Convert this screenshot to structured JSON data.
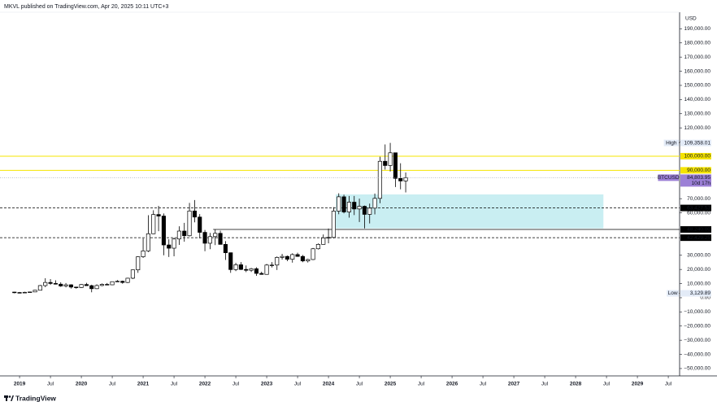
{
  "chart_data": {
    "type": "candlestick",
    "header": "MKVL published on TradingView.com, Apr 20, 2025 10:11 UTC+3",
    "currency": "USD",
    "footer": "TradingView",
    "up_color": "#ffffff",
    "down_color": "#000000",
    "x": [
      -1,
      0,
      1,
      2,
      3,
      4,
      5,
      6,
      7,
      8,
      9,
      10,
      11,
      12,
      13,
      14,
      15,
      16,
      17,
      18,
      19,
      20,
      21,
      22,
      23,
      24,
      25,
      26,
      27,
      28,
      29,
      30,
      31,
      32,
      33,
      34,
      35,
      36,
      37,
      38,
      39,
      40,
      41,
      42,
      43,
      44,
      45,
      46,
      47,
      48,
      49,
      50,
      51,
      52,
      53,
      54,
      55,
      56,
      57,
      58,
      59,
      60,
      61,
      62,
      63,
      64,
      65,
      66,
      67,
      68,
      69,
      70,
      71,
      72,
      73,
      74,
      75
    ],
    "open": [
      4000,
      3700,
      3450,
      3850,
      4100,
      5300,
      8600,
      10800,
      10100,
      9600,
      8300,
      9150,
      7550,
      7200,
      9350,
      8550,
      6400,
      8650,
      9450,
      9150,
      11350,
      11650,
      10800,
      13800,
      19700,
      28950,
      33100,
      45200,
      58800,
      57700,
      37300,
      35000,
      41500,
      47100,
      43800,
      61300,
      57000,
      46200,
      38500,
      43200,
      45500,
      37700,
      31800,
      19900,
      23300,
      20000,
      19400,
      20500,
      17200,
      16500,
      23100,
      23100,
      28500,
      29200,
      27200,
      30500,
      29200,
      26000,
      27000,
      34600,
      37700,
      42300,
      42600,
      61200,
      71300,
      60600,
      67500,
      62700,
      64600,
      58900,
      63300,
      70200,
      96400,
      93400,
      102400,
      84300,
      82500
    ],
    "high": [
      4200,
      4100,
      4200,
      4100,
      5600,
      9000,
      13800,
      13200,
      12300,
      10900,
      10400,
      9500,
      7750,
      9600,
      10500,
      9200,
      9450,
      10100,
      10400,
      11450,
      12500,
      12100,
      14100,
      19900,
      29300,
      41950,
      58300,
      61800,
      64900,
      59500,
      41300,
      42400,
      50500,
      52900,
      67000,
      69000,
      59100,
      47900,
      45800,
      48200,
      47400,
      40000,
      31900,
      24700,
      25200,
      22800,
      21100,
      21500,
      18400,
      23900,
      25200,
      29200,
      31000,
      29800,
      31400,
      31800,
      30200,
      27500,
      35200,
      38400,
      44700,
      48900,
      64000,
      73800,
      72800,
      71900,
      71900,
      70000,
      65100,
      66500,
      73600,
      99600,
      108300,
      109358.01,
      102500,
      95000,
      88500
    ],
    "low": [
      3129.89,
      3400,
      3400,
      3700,
      4050,
      5300,
      7500,
      9100,
      9400,
      7700,
      7300,
      6500,
      6400,
      6850,
      8450,
      3850,
      6150,
      8150,
      8900,
      8950,
      11100,
      9900,
      10400,
      13200,
      17600,
      28100,
      32300,
      45000,
      47000,
      30000,
      28800,
      29300,
      37300,
      39600,
      43300,
      53300,
      42000,
      32900,
      34300,
      37200,
      37600,
      26700,
      17600,
      18800,
      19600,
      18100,
      18200,
      15500,
      16300,
      16500,
      21400,
      19600,
      26900,
      25800,
      24800,
      28900,
      25100,
      24900,
      26600,
      34100,
      37600,
      38500,
      41900,
      59000,
      59600,
      56600,
      58400,
      53500,
      49000,
      52500,
      58900,
      66800,
      90500,
      89200,
      78200,
      76600,
      74400
    ],
    "close": [
      3700,
      3450,
      3850,
      4100,
      5300,
      8600,
      10800,
      10100,
      9600,
      8300,
      9150,
      7550,
      7200,
      9350,
      8550,
      6400,
      8650,
      9450,
      9150,
      11350,
      11650,
      10800,
      13800,
      19700,
      28950,
      33100,
      45200,
      58800,
      57700,
      37300,
      35000,
      41500,
      47100,
      43800,
      61300,
      57000,
      46200,
      38500,
      43200,
      45500,
      37700,
      31800,
      19900,
      23300,
      20000,
      19400,
      20500,
      17200,
      16500,
      23100,
      23100,
      28500,
      29200,
      27200,
      30500,
      29200,
      26000,
      27000,
      34600,
      37700,
      42300,
      42600,
      61200,
      71300,
      60600,
      67500,
      62700,
      64600,
      58900,
      63300,
      70200,
      96400,
      93400,
      102400,
      84300,
      82500,
      84800
    ],
    "xlim": [
      -3.8,
      128.2
    ],
    "xticks": [
      {
        "value": 0,
        "label": "2019"
      },
      {
        "value": 6,
        "label": "Jul"
      },
      {
        "value": 12,
        "label": "2020"
      },
      {
        "value": 18,
        "label": "Jul"
      },
      {
        "value": 24,
        "label": "2021"
      },
      {
        "value": 30,
        "label": "Jul"
      },
      {
        "value": 36,
        "label": "2022"
      },
      {
        "value": 42,
        "label": "Jul"
      },
      {
        "value": 48,
        "label": "2023"
      },
      {
        "value": 54,
        "label": "Jul"
      },
      {
        "value": 60,
        "label": "2024"
      },
      {
        "value": 66,
        "label": "Jul"
      },
      {
        "value": 72,
        "label": "2025"
      },
      {
        "value": 78,
        "label": "Jul"
      },
      {
        "value": 84,
        "label": "2026"
      },
      {
        "value": 90,
        "label": "Jul"
      },
      {
        "value": 96,
        "label": "2027"
      },
      {
        "value": 102,
        "label": "Jul"
      },
      {
        "value": 108,
        "label": "2028"
      },
      {
        "value": 114,
        "label": "Jul"
      },
      {
        "value": 120,
        "label": "2029"
      },
      {
        "value": 126,
        "label": "Jul"
      }
    ],
    "ylim": [
      -55200,
      201700
    ],
    "yticks": [
      {
        "value": 190000,
        "label": "190,000.00"
      },
      {
        "value": 180000,
        "label": "180,000.00"
      },
      {
        "value": 170000,
        "label": "170,000.00"
      },
      {
        "value": 160000,
        "label": "160,000.00"
      },
      {
        "value": 150000,
        "label": "150,000.00"
      },
      {
        "value": 140000,
        "label": "140,000.00"
      },
      {
        "value": 130000,
        "label": "130,000.00"
      },
      {
        "value": 120000,
        "label": "120,000.00"
      },
      {
        "value": 110000,
        "label": "110,000.00"
      },
      {
        "value": 70000,
        "label": "70,000.00"
      },
      {
        "value": 60000,
        "label": "60,000.00"
      },
      {
        "value": 30000,
        "label": "30,000.00"
      },
      {
        "value": 20000,
        "label": "20,000.00"
      },
      {
        "value": 10000,
        "label": "10,000.00"
      },
      {
        "value": 0,
        "label": "0.00"
      },
      {
        "value": -10000,
        "label": "−10,000.00"
      },
      {
        "value": -20000,
        "label": "−20,000.00"
      },
      {
        "value": -30000,
        "label": "−30,000.00"
      },
      {
        "value": -40000,
        "label": "−40,000.00"
      },
      {
        "value": -50000,
        "label": "−50,000.00"
      }
    ],
    "zone": {
      "x": [
        61.4,
        113.4
      ],
      "y": [
        49000,
        73000
      ],
      "color": "#c9eef2"
    },
    "levels": [
      {
        "value": 100000,
        "value_label": "100,000.00",
        "color": "#f5e400",
        "style": "solid",
        "text_color": "#131722"
      },
      {
        "value": 90000,
        "value_label": "90,000.00",
        "color": "#f5e400",
        "style": "solid",
        "text_color": "#131722"
      },
      {
        "value": 63427.53,
        "value_label": "63,427.53",
        "color": "#000000",
        "style": "dashed",
        "text_color": "#ffffff"
      },
      {
        "value": 48240,
        "value_label": "48,240.00",
        "color": "#000000",
        "style": "solid",
        "text_color": "#ffffff",
        "x_start": 37.6
      },
      {
        "value": 42429.25,
        "value_label": "42,429.25",
        "color": "#000000",
        "style": "dashed",
        "text_color": "#ffffff"
      }
    ],
    "badges": [
      {
        "label": "High",
        "value": 109358.01,
        "value_label": "109,358.01",
        "color": "#e3ebf7"
      },
      {
        "label": "BTCUSD",
        "value": 84803.95,
        "value_label": "84,803.95",
        "sub": "10d 17h",
        "color": "#9c80d6",
        "line": true
      },
      {
        "label": "Low",
        "value": 3129.89,
        "value_label": "3,129.89",
        "color": "#e3ebf7"
      }
    ]
  }
}
